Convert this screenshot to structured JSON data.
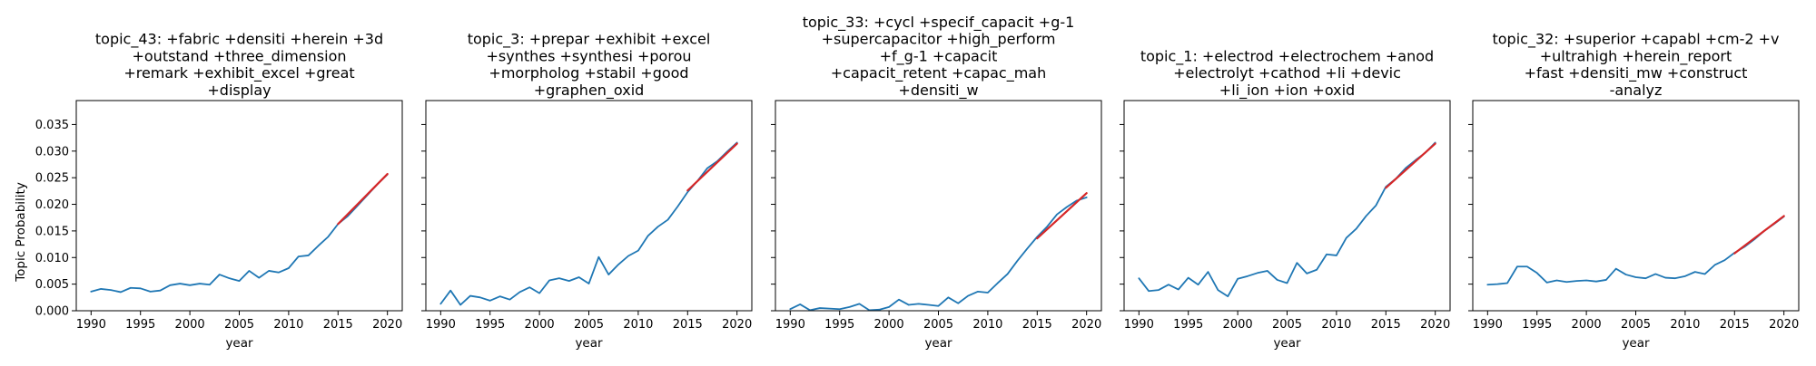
{
  "shared_ylabel": "Topic Probability",
  "chart_data": [
    {
      "type": "line",
      "title": [
        "topic_43: +fabric +densiti +herein +3d",
        "+outstand +three_dimension",
        "+remark +exhibit_excel +great",
        "+display"
      ],
      "xlabel": "year",
      "ylabel": "Topic Probability",
      "xlim": [
        1988.5,
        2021.5
      ],
      "ylim": [
        0,
        0.0395
      ],
      "xticks": [
        1990,
        1995,
        2000,
        2005,
        2010,
        2015,
        2020
      ],
      "yticks": [
        0.0,
        0.005,
        0.01,
        0.015,
        0.02,
        0.025,
        0.03,
        0.035
      ],
      "yticklabels": [
        "0.000",
        "0.005",
        "0.010",
        "0.015",
        "0.020",
        "0.025",
        "0.030",
        "0.035"
      ],
      "show_yticklabels": true,
      "series": [
        {
          "color": "#1f77b4",
          "x": [
            1990,
            1991,
            1992,
            1993,
            1994,
            1995,
            1996,
            1997,
            1998,
            1999,
            2000,
            2001,
            2002,
            2003,
            2004,
            2005,
            2006,
            2007,
            2008,
            2009,
            2010,
            2011,
            2012,
            2013,
            2014,
            2015,
            2016,
            2017,
            2018,
            2019,
            2020
          ],
          "y": [
            0.0036,
            0.0041,
            0.0039,
            0.0035,
            0.0043,
            0.0042,
            0.0036,
            0.0038,
            0.0048,
            0.0051,
            0.0048,
            0.0051,
            0.0049,
            0.0068,
            0.0061,
            0.0056,
            0.0075,
            0.0062,
            0.0075,
            0.0072,
            0.008,
            0.0102,
            0.0104,
            0.0122,
            0.0139,
            0.0163,
            0.0178,
            0.0198,
            0.0218,
            0.0238,
            0.0256
          ]
        },
        {
          "color": "#d62728",
          "x": [
            2015,
            2020
          ],
          "y": [
            0.0163,
            0.0257
          ]
        }
      ]
    },
    {
      "type": "line",
      "title": [
        "topic_3: +prepar +exhibit +excel",
        "+synthes +synthesi +porou",
        "+morpholog +stabil +good",
        "+graphen_oxid"
      ],
      "xlabel": "year",
      "ylabel": "",
      "xlim": [
        1988.5,
        2021.5
      ],
      "ylim": [
        0,
        0.0395
      ],
      "xticks": [
        1990,
        1995,
        2000,
        2005,
        2010,
        2015,
        2020
      ],
      "yticks": [
        0.0,
        0.005,
        0.01,
        0.015,
        0.02,
        0.025,
        0.03,
        0.035
      ],
      "show_yticklabels": false,
      "series": [
        {
          "color": "#1f77b4",
          "x": [
            1990,
            1991,
            1992,
            1993,
            1994,
            1995,
            1996,
            1997,
            1998,
            1999,
            2000,
            2001,
            2002,
            2003,
            2004,
            2005,
            2006,
            2007,
            2008,
            2009,
            2010,
            2011,
            2012,
            2013,
            2014,
            2015,
            2016,
            2017,
            2018,
            2019,
            2020
          ],
          "y": [
            0.0013,
            0.0038,
            0.0011,
            0.0028,
            0.0025,
            0.0019,
            0.0027,
            0.0021,
            0.0035,
            0.0044,
            0.0033,
            0.0057,
            0.0061,
            0.0056,
            0.0063,
            0.0051,
            0.0101,
            0.0068,
            0.0087,
            0.0103,
            0.0113,
            0.0141,
            0.0158,
            0.0171,
            0.0196,
            0.0223,
            0.0244,
            0.0268,
            0.0281,
            0.0299,
            0.0316
          ]
        },
        {
          "color": "#d62728",
          "x": [
            2015,
            2020
          ],
          "y": [
            0.0226,
            0.0314
          ]
        }
      ]
    },
    {
      "type": "line",
      "title": [
        "topic_33: +cycl +specif_capacit +g-1",
        "+supercapacitor +high_perform",
        "+f_g-1 +capacit",
        "+capacit_retent +capac_mah",
        "+densiti_w"
      ],
      "xlabel": "year",
      "ylabel": "",
      "xlim": [
        1988.5,
        2021.5
      ],
      "ylim": [
        0,
        0.0395
      ],
      "xticks": [
        1990,
        1995,
        2000,
        2005,
        2010,
        2015,
        2020
      ],
      "yticks": [
        0.0,
        0.005,
        0.01,
        0.015,
        0.02,
        0.025,
        0.03,
        0.035
      ],
      "show_yticklabels": false,
      "series": [
        {
          "color": "#1f77b4",
          "x": [
            1990,
            1991,
            1992,
            1993,
            1994,
            1995,
            1996,
            1997,
            1998,
            1999,
            2000,
            2001,
            2002,
            2003,
            2004,
            2005,
            2006,
            2007,
            2008,
            2009,
            2010,
            2011,
            2012,
            2013,
            2014,
            2015,
            2016,
            2017,
            2018,
            2019,
            2020
          ],
          "y": [
            0.0003,
            0.0012,
            0.0001,
            0.0005,
            0.0004,
            0.0003,
            0.0007,
            0.0013,
            0.0001,
            0.0002,
            0.0007,
            0.0021,
            0.0011,
            0.0013,
            0.0011,
            0.0009,
            0.0025,
            0.0014,
            0.0028,
            0.0036,
            0.0034,
            0.0052,
            0.0069,
            0.0094,
            0.0117,
            0.0139,
            0.0158,
            0.0181,
            0.0195,
            0.0207,
            0.0213
          ]
        },
        {
          "color": "#d62728",
          "x": [
            2015,
            2020
          ],
          "y": [
            0.0136,
            0.0221
          ]
        }
      ]
    },
    {
      "type": "line",
      "title": [
        "topic_1: +electrod +electrochem +anod",
        "+electrolyt +cathod +li +devic",
        "+li_ion +ion +oxid"
      ],
      "xlabel": "year",
      "ylabel": "",
      "xlim": [
        1988.5,
        2021.5
      ],
      "ylim": [
        0,
        0.0395
      ],
      "xticks": [
        1990,
        1995,
        2000,
        2005,
        2010,
        2015,
        2020
      ],
      "yticks": [
        0.0,
        0.005,
        0.01,
        0.015,
        0.02,
        0.025,
        0.03,
        0.035
      ],
      "show_yticklabels": false,
      "series": [
        {
          "color": "#1f77b4",
          "x": [
            1990,
            1991,
            1992,
            1993,
            1994,
            1995,
            1996,
            1997,
            1998,
            1999,
            2000,
            2001,
            2002,
            2003,
            2004,
            2005,
            2006,
            2007,
            2008,
            2009,
            2010,
            2011,
            2012,
            2013,
            2014,
            2015,
            2016,
            2017,
            2018,
            2019,
            2020
          ],
          "y": [
            0.0061,
            0.0037,
            0.0039,
            0.0049,
            0.004,
            0.0062,
            0.0049,
            0.0073,
            0.0039,
            0.0027,
            0.006,
            0.0065,
            0.0071,
            0.0075,
            0.0058,
            0.0052,
            0.009,
            0.007,
            0.0077,
            0.0106,
            0.0104,
            0.0137,
            0.0154,
            0.0178,
            0.0198,
            0.0233,
            0.0248,
            0.0268,
            0.0283,
            0.0297,
            0.0316
          ]
        },
        {
          "color": "#d62728",
          "x": [
            2015,
            2020
          ],
          "y": [
            0.0231,
            0.0314
          ]
        }
      ]
    },
    {
      "type": "line",
      "title": [
        "topic_32: +superior +capabl +cm-2 +v",
        "+ultrahigh +herein_report",
        "+fast +densiti_mw +construct",
        "-analyz"
      ],
      "xlabel": "year",
      "ylabel": "",
      "xlim": [
        1988.5,
        2021.5
      ],
      "ylim": [
        0,
        0.0395
      ],
      "xticks": [
        1990,
        1995,
        2000,
        2005,
        2010,
        2015,
        2020
      ],
      "yticks": [
        0.0,
        0.005,
        0.01,
        0.015,
        0.02,
        0.025,
        0.03,
        0.035
      ],
      "show_yticklabels": false,
      "series": [
        {
          "color": "#1f77b4",
          "x": [
            1990,
            1991,
            1992,
            1993,
            1994,
            1995,
            1996,
            1997,
            1998,
            1999,
            2000,
            2001,
            2002,
            2003,
            2004,
            2005,
            2006,
            2007,
            2008,
            2009,
            2010,
            2011,
            2012,
            2013,
            2014,
            2015,
            2016,
            2017,
            2018,
            2019,
            2020
          ],
          "y": [
            0.0049,
            0.005,
            0.0052,
            0.0083,
            0.0083,
            0.0071,
            0.0053,
            0.0057,
            0.0054,
            0.0056,
            0.0057,
            0.0055,
            0.0058,
            0.0079,
            0.0068,
            0.0063,
            0.0061,
            0.0069,
            0.0062,
            0.0061,
            0.0065,
            0.0073,
            0.0069,
            0.0086,
            0.0095,
            0.0109,
            0.012,
            0.0134,
            0.015,
            0.0163,
            0.0177
          ]
        },
        {
          "color": "#d62728",
          "x": [
            2015,
            2020
          ],
          "y": [
            0.0108,
            0.0178
          ]
        }
      ]
    }
  ]
}
